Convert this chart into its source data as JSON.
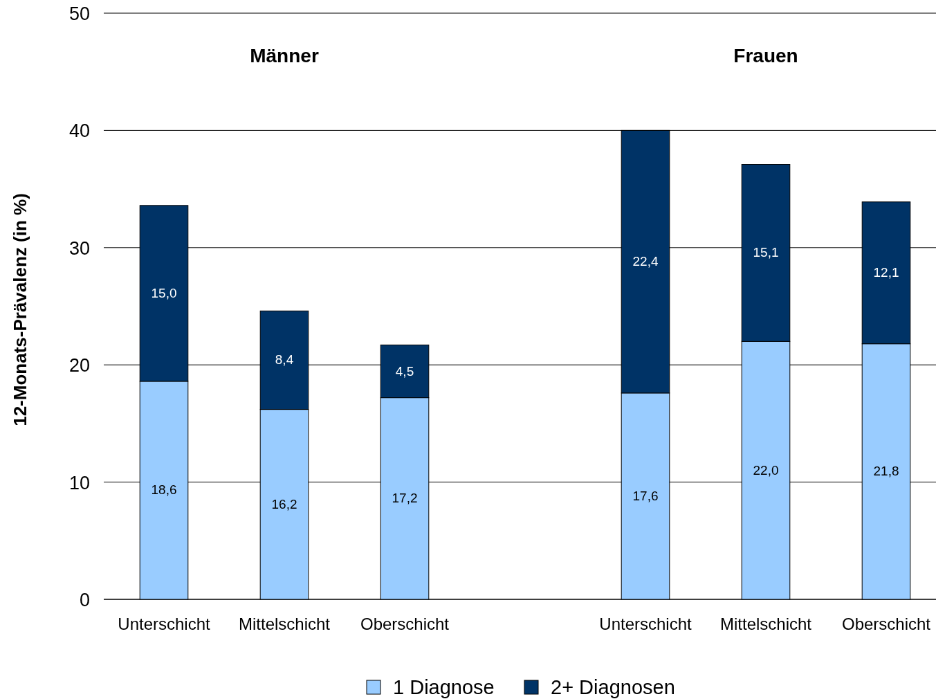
{
  "chart_data": {
    "type": "bar",
    "ylabel": "12-Monats-Prävalenz (in %)",
    "categories": [
      "Unterschicht",
      "Mittelschicht",
      "Oberschicht",
      null,
      "Unterschicht",
      "Mittelschicht",
      "Oberschicht"
    ],
    "stacked": true,
    "series": [
      {
        "name": "1 Diagnose",
        "color": "#99ccff",
        "values": [
          18.6,
          16.2,
          17.2,
          null,
          17.6,
          22.0,
          21.8
        ],
        "value_labels": [
          "18,6",
          "16,2",
          "17,2",
          null,
          "17,6",
          "22,0",
          "21,8"
        ]
      },
      {
        "name": "2+ Diagnosen",
        "color": "#003366",
        "values": [
          15.0,
          8.4,
          4.5,
          null,
          22.4,
          15.1,
          12.1
        ],
        "value_labels": [
          "15,0",
          "8,4",
          "4,5",
          null,
          "22,4",
          "15,1",
          "12,1"
        ]
      }
    ],
    "ylim": [
      0,
      50
    ],
    "yticks": [
      0,
      10,
      20,
      30,
      40,
      50
    ],
    "grid": "y",
    "legend": "bottom",
    "annotations": [
      "Männer",
      "Frauen"
    ]
  }
}
